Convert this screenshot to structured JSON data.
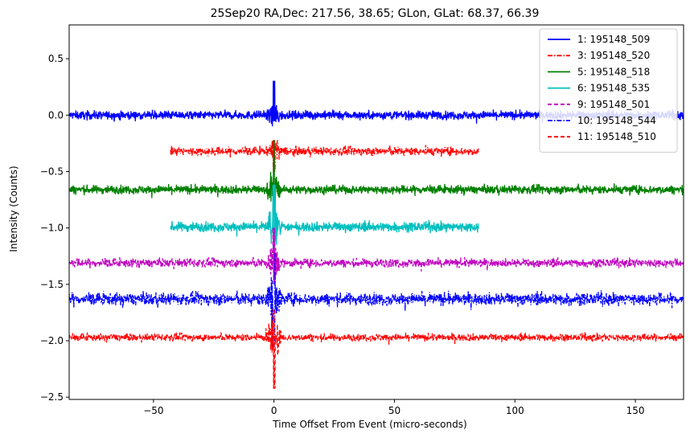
{
  "chart_data": {
    "type": "line",
    "title": "25Sep20 RA,Dec:  217.56,  38.65; GLon, GLat:   68.37,  66.39",
    "xlabel": "Time Offset From Event (micro-seconds)",
    "ylabel": "Intensity (Counts)",
    "xlim": [
      -85,
      170
    ],
    "ylim": [
      -2.52,
      0.8
    ],
    "xticks": [
      -50,
      0,
      50,
      100,
      150
    ],
    "xtick_labels": [
      "−50",
      "0",
      "50",
      "100",
      "150"
    ],
    "yticks": [
      0.5,
      0.0,
      -0.5,
      -1.0,
      -1.5,
      -2.0,
      -2.5
    ],
    "ytick_labels": [
      "0.5",
      "0.0",
      "−0.5",
      "−1.0",
      "−1.5",
      "−2.0",
      "−2.5"
    ],
    "grid": false,
    "legend_position": "top-right",
    "series": [
      {
        "name": "1: 195148_509",
        "color": "#0000ff",
        "style": "solid",
        "offset": 0.0,
        "x_range": [
          -85,
          170
        ],
        "noise": 0.035,
        "spike_up": 0.3,
        "spike_down": -0.05
      },
      {
        "name": "3: 195148_520",
        "color": "#ff0000",
        "style": "dashdot",
        "offset": -0.32,
        "x_range": [
          -43,
          85
        ],
        "noise": 0.035,
        "spike_up": -0.22,
        "spike_down": -0.5
      },
      {
        "name": "5: 195148_518",
        "color": "#008000",
        "style": "solid",
        "offset": -0.66,
        "x_range": [
          -85,
          170
        ],
        "noise": 0.035,
        "spike_up": -0.22,
        "spike_down": -0.75
      },
      {
        "name": "6: 195148_535",
        "color": "#00bfbf",
        "style": "solid",
        "offset": -0.99,
        "x_range": [
          -43,
          85
        ],
        "noise": 0.04,
        "spike_up": -0.62,
        "spike_down": -1.22
      },
      {
        "name": "9: 195148_501",
        "color": "#bf00bf",
        "style": "dashed",
        "offset": -1.31,
        "x_range": [
          -85,
          170
        ],
        "noise": 0.035,
        "spike_up": -1.0,
        "spike_down": -1.5
      },
      {
        "name": "10: 195148_544",
        "color": "#0000ff",
        "style": "dashdot",
        "offset": -1.63,
        "x_range": [
          -85,
          170
        ],
        "noise": 0.05,
        "spike_up": -1.22,
        "spike_down": -2.05
      },
      {
        "name": "11: 195148_510",
        "color": "#ff0000",
        "style": "dashed",
        "offset": -1.97,
        "x_range": [
          -85,
          170
        ],
        "noise": 0.03,
        "spike_up": -1.72,
        "spike_down": -2.42
      }
    ]
  }
}
